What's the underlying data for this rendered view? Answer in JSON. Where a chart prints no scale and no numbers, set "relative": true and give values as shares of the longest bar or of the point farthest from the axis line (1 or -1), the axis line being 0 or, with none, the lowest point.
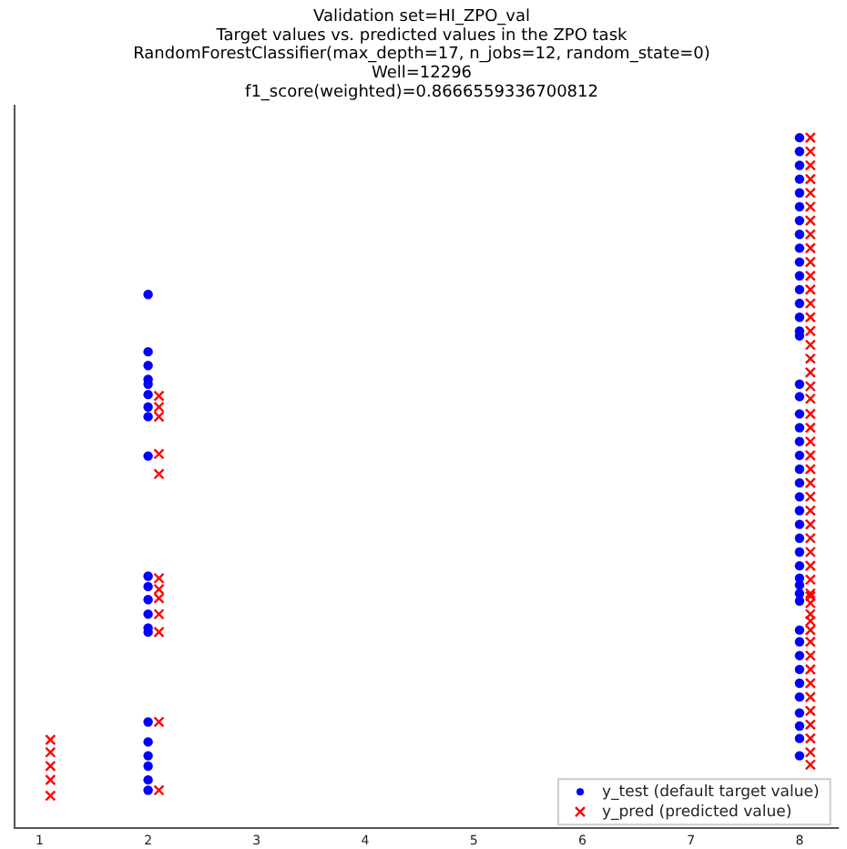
{
  "chart_data": {
    "type": "scatter",
    "title": "Validation set=HI_ZPO_val\nTarget values vs. predicted values in the ZPO task\nRandomForestClassifier(max_depth=17, n_jobs=12, random_state=0)\nWell=12296\nf1_score(weighted)=0.8666559336700812",
    "relative": true,
    "xlim": [
      0.77,
      8.35
    ],
    "xticks": [
      1,
      2,
      3,
      4,
      5,
      6,
      7,
      8
    ],
    "grid": false,
    "legend": "bottom right",
    "series": [
      {
        "name": "y_test (default target value)",
        "color": "#0000ff",
        "marker": "circle",
        "x": [
          2,
          2,
          2,
          2,
          2,
          2,
          2,
          2,
          2,
          2,
          2,
          2,
          2,
          2,
          2,
          2,
          2,
          2,
          2,
          2,
          2,
          8,
          8,
          8,
          8,
          8,
          8,
          8,
          8,
          8,
          8,
          8,
          8,
          8,
          8,
          8,
          8,
          8,
          8,
          8,
          8,
          8,
          8,
          8,
          8,
          8,
          8,
          8,
          8,
          8,
          8,
          8,
          8,
          8,
          8,
          8,
          8,
          8,
          8,
          8,
          8,
          8,
          8,
          8,
          8
        ],
        "values": [
          0.773,
          0.69,
          0.67,
          0.65,
          0.643,
          0.628,
          0.61,
          0.596,
          0.539,
          0.365,
          0.35,
          0.331,
          0.31,
          0.29,
          0.284,
          0.154,
          0.125,
          0.105,
          0.09,
          0.07,
          0.055,
          1.0,
          0.98,
          0.96,
          0.94,
          0.92,
          0.9,
          0.88,
          0.86,
          0.84,
          0.82,
          0.8,
          0.78,
          0.76,
          0.74,
          0.72,
          0.713,
          0.643,
          0.625,
          0.6,
          0.58,
          0.56,
          0.54,
          0.52,
          0.5,
          0.48,
          0.46,
          0.44,
          0.42,
          0.4,
          0.38,
          0.362,
          0.352,
          0.34,
          0.329,
          0.287,
          0.27,
          0.25,
          0.23,
          0.21,
          0.19,
          0.167,
          0.148,
          0.13,
          0.105
        ]
      },
      {
        "name": "y_pred (predicted value)",
        "color": "#ff0000",
        "marker": "cross",
        "x": [
          1.1,
          1.1,
          1.1,
          1.1,
          1.1,
          2.1,
          2.1,
          2.1,
          2.1,
          2.1,
          2.1,
          2.1,
          2.1,
          2.1,
          2.1,
          2.1,
          2.1,
          8.1,
          8.1,
          8.1,
          8.1,
          8.1,
          8.1,
          8.1,
          8.1,
          8.1,
          8.1,
          8.1,
          8.1,
          8.1,
          8.1,
          8.1,
          8.1,
          8.1,
          8.1,
          8.1,
          8.1,
          8.1,
          8.1,
          8.1,
          8.1,
          8.1,
          8.1,
          8.1,
          8.1,
          8.1,
          8.1,
          8.1,
          8.1,
          8.1,
          8.1,
          8.1,
          8.1,
          8.1,
          8.1,
          8.1,
          8.1,
          8.1,
          8.1,
          8.1,
          8.1,
          8.1,
          8.1,
          8.1,
          8.1,
          8.1
        ],
        "values": [
          0.128,
          0.11,
          0.09,
          0.07,
          0.047,
          0.626,
          0.61,
          0.596,
          0.542,
          0.513,
          0.362,
          0.346,
          0.333,
          0.31,
          0.284,
          0.154,
          0.055,
          1.0,
          0.98,
          0.96,
          0.94,
          0.92,
          0.9,
          0.88,
          0.86,
          0.84,
          0.82,
          0.8,
          0.78,
          0.76,
          0.74,
          0.72,
          0.7,
          0.68,
          0.66,
          0.64,
          0.622,
          0.6,
          0.58,
          0.56,
          0.54,
          0.52,
          0.5,
          0.48,
          0.46,
          0.44,
          0.42,
          0.4,
          0.38,
          0.36,
          0.34,
          0.336,
          0.326,
          0.31,
          0.3,
          0.287,
          0.27,
          0.25,
          0.23,
          0.21,
          0.19,
          0.17,
          0.15,
          0.13,
          0.11,
          0.092
        ]
      }
    ]
  }
}
